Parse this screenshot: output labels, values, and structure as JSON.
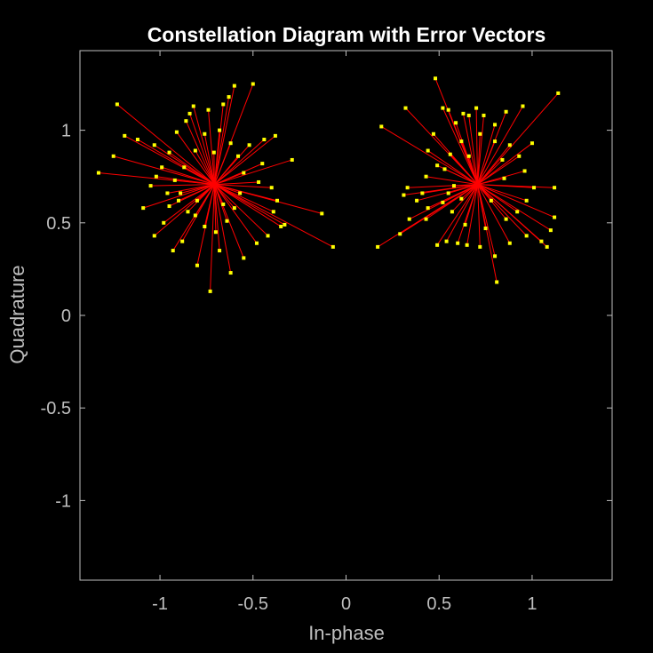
{
  "chart_data": {
    "type": "scatter",
    "title": "Constellation Diagram with Error Vectors",
    "xlabel": "In-phase",
    "ylabel": "Quadrature",
    "xlim": [
      -1.43,
      1.43
    ],
    "ylim": [
      -1.43,
      1.43
    ],
    "xticks": [
      -1,
      -0.5,
      0,
      0.5,
      1
    ],
    "xtick_labels": [
      "-1",
      "-0.5",
      "0",
      "0.5",
      "1"
    ],
    "yticks": [
      -1,
      -0.5,
      0,
      0.5,
      1
    ],
    "ytick_labels": [
      "-1",
      "-0.5",
      "0",
      "0.5",
      "1"
    ],
    "grid": false,
    "colors": {
      "background": "#000000",
      "axes_box": "#bfbfbf",
      "error_vector": "#ff0000",
      "marker": "#ffff00"
    },
    "series": [
      {
        "kind": "error-vectors",
        "reference": [
          -0.7071,
          0.7071
        ],
        "points": [
          [
            -1.23,
            1.14
          ],
          [
            -1.33,
            0.77
          ],
          [
            -1.25,
            0.86
          ],
          [
            -1.19,
            0.97
          ],
          [
            -1.12,
            0.95
          ],
          [
            -1.03,
            0.92
          ],
          [
            -1.09,
            0.58
          ],
          [
            -1.03,
            0.43
          ],
          [
            -0.98,
            0.5
          ],
          [
            -0.93,
            0.35
          ],
          [
            -0.88,
            0.4
          ],
          [
            -0.8,
            0.27
          ],
          [
            -0.73,
            0.13
          ],
          [
            -0.62,
            0.23
          ],
          [
            -0.55,
            0.31
          ],
          [
            -0.48,
            0.39
          ],
          [
            -0.42,
            0.43
          ],
          [
            -0.35,
            0.48
          ],
          [
            -0.33,
            0.49
          ],
          [
            -0.13,
            0.55
          ],
          [
            -0.07,
            0.37
          ],
          [
            -0.39,
            0.56
          ],
          [
            -0.37,
            0.62
          ],
          [
            -0.4,
            0.69
          ],
          [
            -0.29,
            0.84
          ],
          [
            -0.38,
            0.97
          ],
          [
            -0.44,
            0.95
          ],
          [
            -0.5,
            1.25
          ],
          [
            -0.6,
            1.24
          ],
          [
            -0.63,
            1.18
          ],
          [
            -0.66,
            1.14
          ],
          [
            -0.74,
            1.11
          ],
          [
            -0.82,
            1.13
          ],
          [
            -0.84,
            1.09
          ],
          [
            -0.86,
            1.05
          ],
          [
            -0.91,
            0.99
          ],
          [
            -0.95,
            0.88
          ],
          [
            -0.99,
            0.8
          ],
          [
            -1.02,
            0.75
          ],
          [
            -1.05,
            0.7
          ],
          [
            -0.96,
            0.66
          ],
          [
            -0.9,
            0.62
          ],
          [
            -0.85,
            0.56
          ],
          [
            -0.81,
            0.54
          ],
          [
            -0.76,
            0.48
          ],
          [
            -0.7,
            0.45
          ],
          [
            -0.64,
            0.51
          ],
          [
            -0.6,
            0.58
          ],
          [
            -0.57,
            0.66
          ],
          [
            -0.55,
            0.77
          ],
          [
            -0.58,
            0.86
          ],
          [
            -0.62,
            0.93
          ],
          [
            -0.68,
            1.0
          ],
          [
            -0.76,
            0.98
          ],
          [
            -0.81,
            0.89
          ],
          [
            -0.87,
            0.8
          ],
          [
            -0.92,
            0.73
          ],
          [
            -0.89,
            0.66
          ],
          [
            -0.8,
            0.62
          ],
          [
            -0.66,
            0.6
          ],
          [
            -0.47,
            0.72
          ],
          [
            -0.45,
            0.82
          ],
          [
            -0.52,
            0.92
          ],
          [
            -0.71,
            0.88
          ],
          [
            -0.95,
            0.59
          ],
          [
            -0.68,
            0.35
          ]
        ]
      },
      {
        "kind": "error-vectors",
        "reference": [
          0.7071,
          0.7071
        ],
        "points": [
          [
            0.17,
            0.37
          ],
          [
            0.19,
            1.02
          ],
          [
            0.32,
            1.12
          ],
          [
            0.29,
            0.44
          ],
          [
            0.34,
            0.52
          ],
          [
            0.31,
            0.65
          ],
          [
            0.33,
            0.69
          ],
          [
            0.38,
            0.62
          ],
          [
            0.44,
            0.58
          ],
          [
            0.49,
            0.38
          ],
          [
            0.54,
            0.4
          ],
          [
            0.6,
            0.39
          ],
          [
            0.65,
            0.38
          ],
          [
            0.72,
            0.37
          ],
          [
            0.8,
            0.32
          ],
          [
            0.81,
            0.18
          ],
          [
            0.88,
            0.39
          ],
          [
            0.97,
            0.43
          ],
          [
            1.05,
            0.4
          ],
          [
            1.08,
            0.37
          ],
          [
            1.1,
            0.46
          ],
          [
            1.12,
            0.53
          ],
          [
            1.12,
            0.69
          ],
          [
            1.14,
            1.2
          ],
          [
            0.95,
            1.13
          ],
          [
            0.86,
            1.1
          ],
          [
            0.8,
            1.03
          ],
          [
            0.74,
            1.08
          ],
          [
            0.7,
            1.12
          ],
          [
            0.66,
            1.08
          ],
          [
            0.63,
            1.09
          ],
          [
            0.59,
            1.04
          ],
          [
            0.55,
            1.11
          ],
          [
            0.48,
            1.28
          ],
          [
            0.52,
            1.12
          ],
          [
            0.47,
            0.98
          ],
          [
            0.44,
            0.89
          ],
          [
            0.49,
            0.81
          ],
          [
            0.43,
            0.75
          ],
          [
            0.41,
            0.66
          ],
          [
            0.52,
            0.61
          ],
          [
            0.57,
            0.56
          ],
          [
            0.64,
            0.49
          ],
          [
            0.75,
            0.47
          ],
          [
            0.86,
            0.52
          ],
          [
            0.92,
            0.56
          ],
          [
            0.97,
            0.62
          ],
          [
            1.01,
            0.69
          ],
          [
            0.96,
            0.78
          ],
          [
            0.93,
            0.86
          ],
          [
            0.88,
            0.92
          ],
          [
            0.8,
            0.94
          ],
          [
            0.72,
            0.98
          ],
          [
            0.62,
            0.94
          ],
          [
            0.56,
            0.87
          ],
          [
            0.53,
            0.79
          ],
          [
            0.58,
            0.7
          ],
          [
            0.62,
            0.63
          ],
          [
            0.78,
            0.62
          ],
          [
            0.85,
            0.74
          ],
          [
            0.84,
            0.84
          ],
          [
            0.66,
            0.86
          ],
          [
            0.55,
            0.66
          ],
          [
            1.0,
            0.93
          ],
          [
            0.43,
            0.52
          ]
        ]
      }
    ]
  }
}
